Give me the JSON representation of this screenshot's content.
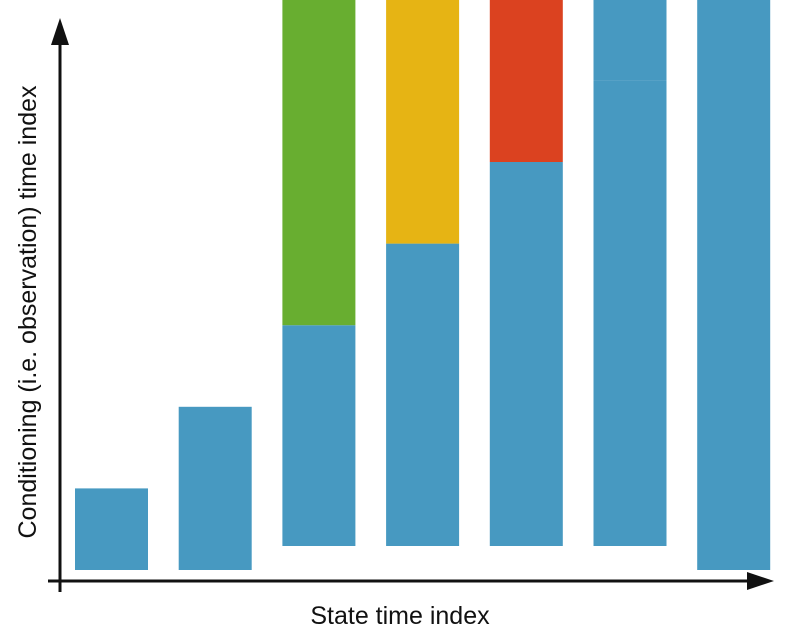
{
  "chart_data": {
    "type": "bar",
    "xlabel": "State time index",
    "ylabel": "Conditioning (i.e. observation) time index",
    "columns": [
      {
        "segments": [
          {
            "from": 0,
            "to": 1,
            "color": "#4799c1"
          }
        ]
      },
      {
        "segments": [
          {
            "from": 0,
            "to": 2,
            "color": "#4799c1"
          }
        ]
      },
      {
        "segments": [
          {
            "from": 0,
            "to": 3,
            "color": "#4799c1"
          },
          {
            "from": 3,
            "to": 7,
            "color": "#68ae30"
          }
        ]
      },
      {
        "segments": [
          {
            "from": 0,
            "to": 4,
            "color": "#4799c1"
          },
          {
            "from": 4,
            "to": 7,
            "color": "#e6b414"
          }
        ]
      },
      {
        "segments": [
          {
            "from": 0,
            "to": 5,
            "color": "#4799c1"
          },
          {
            "from": 5,
            "to": 7,
            "color": "#db4220"
          }
        ]
      },
      {
        "segments": [
          {
            "from": 0,
            "to": 6,
            "color": "#4799c1"
          },
          {
            "from": 6,
            "to": 7,
            "color": "#4799c1"
          }
        ]
      },
      {
        "segments": [
          {
            "from": 0,
            "to": 7,
            "color": "#4799c1"
          }
        ]
      }
    ],
    "ylim": [
      0,
      7
    ],
    "grid": false,
    "legend": "none"
  },
  "colors": {
    "axis": "#111111",
    "background": "#ffffff"
  }
}
